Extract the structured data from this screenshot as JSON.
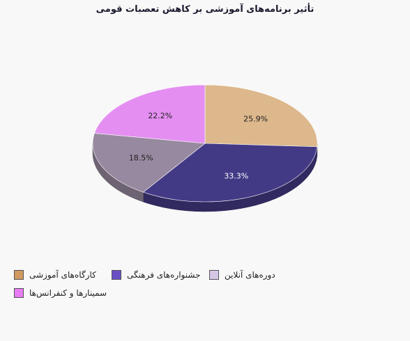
{
  "chart_data": {
    "type": "pie",
    "title": "تأثیر برنامه‌های آموزشی بر کاهش تعصبات قومی",
    "categories": [
      "کارگاه‌های آموزشی",
      "جشنواره‌های فرهنگی",
      "دوره‌های آنلاین",
      "سمینارها و کنفرانس‌ها"
    ],
    "values": [
      25.9,
      33.3,
      18.5,
      22.2
    ],
    "labels": [
      "25.9%",
      "33.3%",
      "18.5%",
      "22.2%"
    ],
    "colors": [
      "#dcb88c",
      "#433a86",
      "#97899f",
      "#e48ef2"
    ],
    "legend_colors": [
      "#d09a62",
      "#6a4fc4",
      "#d6c6e6",
      "#e87cf4"
    ],
    "legend_position": "bottom-left"
  }
}
